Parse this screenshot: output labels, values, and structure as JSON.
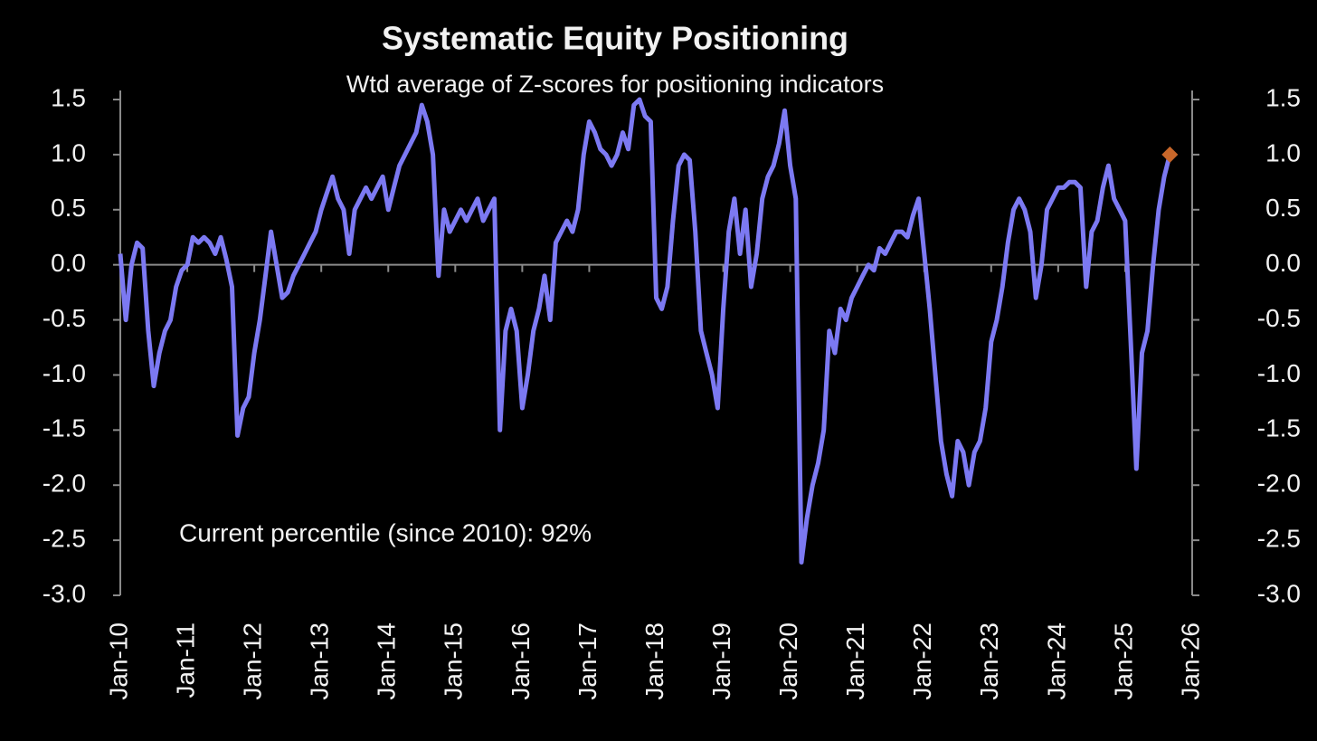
{
  "chart_data": {
    "type": "line",
    "title": "Systematic Equity Positioning",
    "subtitle": "Wtd average of Z-scores for positioning indicators",
    "annotations": [
      "Current percentile (since 2010): 92%"
    ],
    "xlim": [
      2010,
      2026
    ],
    "xticks": [
      {
        "value": 2010,
        "label": "Jan-10"
      },
      {
        "value": 2011,
        "label": "Jan-11"
      },
      {
        "value": 2012,
        "label": "Jan-12"
      },
      {
        "value": 2013,
        "label": "Jan-13"
      },
      {
        "value": 2014,
        "label": "Jan-14"
      },
      {
        "value": 2015,
        "label": "Jan-15"
      },
      {
        "value": 2016,
        "label": "Jan-16"
      },
      {
        "value": 2017,
        "label": "Jan-17"
      },
      {
        "value": 2018,
        "label": "Jan-18"
      },
      {
        "value": 2019,
        "label": "Jan-19"
      },
      {
        "value": 2020,
        "label": "Jan-20"
      },
      {
        "value": 2021,
        "label": "Jan-21"
      },
      {
        "value": 2022,
        "label": "Jan-22"
      },
      {
        "value": 2023,
        "label": "Jan-23"
      },
      {
        "value": 2024,
        "label": "Jan-24"
      },
      {
        "value": 2025,
        "label": "Jan-25"
      },
      {
        "value": 2026,
        "label": "Jan-26"
      }
    ],
    "ylim": [
      -3,
      1.5
    ],
    "yticks": [
      1.5,
      {
        "value": 1,
        "label": "1.0"
      },
      0.5,
      {
        "value": 0,
        "label": "0.0"
      },
      -0.5,
      {
        "value": -1,
        "label": "-1.0"
      },
      -1.5,
      {
        "value": -2,
        "label": "-2.0"
      },
      -2.5,
      {
        "value": -3,
        "label": "-3.0"
      }
    ],
    "y2lim": [
      -3,
      1.5
    ],
    "y2ticks": [
      1.5,
      {
        "value": 1,
        "label": "1.0"
      },
      0.5,
      {
        "value": 0,
        "label": "0.0"
      },
      -0.5,
      {
        "value": -1,
        "label": "-1.0"
      },
      -1.5,
      {
        "value": -2,
        "label": "-2.0"
      },
      -2.5,
      {
        "value": -3,
        "label": "-3.0"
      }
    ],
    "grid": false,
    "zero_line": true,
    "x": [
      2010,
      2010.083,
      2010.167,
      2010.25,
      2010.333,
      2010.417,
      2010.5,
      2010.583,
      2010.667,
      2010.75,
      2010.833,
      2010.917,
      2011,
      2011.083,
      2011.167,
      2011.25,
      2011.333,
      2011.417,
      2011.5,
      2011.583,
      2011.667,
      2011.75,
      2011.833,
      2011.917,
      2012,
      2012.083,
      2012.167,
      2012.25,
      2012.333,
      2012.417,
      2012.5,
      2012.583,
      2012.667,
      2012.75,
      2012.833,
      2012.917,
      2013,
      2013.083,
      2013.167,
      2013.25,
      2013.333,
      2013.417,
      2013.5,
      2013.583,
      2013.667,
      2013.75,
      2013.833,
      2013.917,
      2014,
      2014.083,
      2014.167,
      2014.25,
      2014.333,
      2014.417,
      2014.5,
      2014.583,
      2014.667,
      2014.75,
      2014.833,
      2014.917,
      2015,
      2015.083,
      2015.167,
      2015.25,
      2015.333,
      2015.417,
      2015.5,
      2015.583,
      2015.667,
      2015.75,
      2015.833,
      2015.917,
      2016,
      2016.083,
      2016.167,
      2016.25,
      2016.333,
      2016.417,
      2016.5,
      2016.583,
      2016.667,
      2016.75,
      2016.833,
      2016.917,
      2017,
      2017.083,
      2017.167,
      2017.25,
      2017.333,
      2017.417,
      2017.5,
      2017.583,
      2017.667,
      2017.75,
      2017.833,
      2017.917,
      2018,
      2018.083,
      2018.167,
      2018.25,
      2018.333,
      2018.417,
      2018.5,
      2018.583,
      2018.667,
      2018.75,
      2018.833,
      2018.917,
      2019,
      2019.083,
      2019.167,
      2019.25,
      2019.333,
      2019.417,
      2019.5,
      2019.583,
      2019.667,
      2019.75,
      2019.833,
      2019.917,
      2020,
      2020.083,
      2020.167,
      2020.25,
      2020.333,
      2020.417,
      2020.5,
      2020.583,
      2020.667,
      2020.75,
      2020.833,
      2020.917,
      2021,
      2021.083,
      2021.167,
      2021.25,
      2021.333,
      2021.417,
      2021.5,
      2021.583,
      2021.667,
      2021.75,
      2021.833,
      2021.917,
      2022,
      2022.083,
      2022.167,
      2022.25,
      2022.333,
      2022.417,
      2022.5,
      2022.583,
      2022.667,
      2022.75,
      2022.833,
      2022.917,
      2023,
      2023.083,
      2023.167,
      2023.25,
      2023.333,
      2023.417,
      2023.5,
      2023.583,
      2023.667,
      2023.75,
      2023.833,
      2023.917,
      2024,
      2024.083,
      2024.167,
      2024.25,
      2024.333,
      2024.417,
      2024.5,
      2024.583,
      2024.667,
      2024.75,
      2024.833,
      2024.917,
      2025,
      2025.083,
      2025.167,
      2025.25,
      2025.333,
      2025.417,
      2025.5,
      2025.583,
      2025.667
    ],
    "series": [
      {
        "color": "#7c79f2",
        "last_marker_color": "#c8672a",
        "values": [
          0.1,
          -0.5,
          0.0,
          0.2,
          0.15,
          -0.6,
          -1.1,
          -0.8,
          -0.6,
          -0.5,
          -0.2,
          -0.05,
          0.0,
          0.25,
          0.2,
          0.25,
          0.2,
          0.1,
          0.25,
          0.05,
          -0.2,
          -1.55,
          -1.3,
          -1.2,
          -0.8,
          -0.5,
          -0.1,
          0.3,
          0.0,
          -0.3,
          -0.25,
          -0.1,
          0.0,
          0.1,
          0.2,
          0.3,
          0.5,
          0.65,
          0.8,
          0.6,
          0.5,
          0.1,
          0.5,
          0.6,
          0.7,
          0.6,
          0.7,
          0.8,
          0.5,
          0.7,
          0.9,
          1.0,
          1.1,
          1.2,
          1.45,
          1.3,
          1.0,
          -0.1,
          0.5,
          0.3,
          0.4,
          0.5,
          0.4,
          0.5,
          0.6,
          0.4,
          0.5,
          0.6,
          -1.5,
          -0.6,
          -0.4,
          -0.6,
          -1.3,
          -1.0,
          -0.6,
          -0.4,
          -0.1,
          -0.5,
          0.2,
          0.3,
          0.4,
          0.3,
          0.5,
          1.0,
          1.3,
          1.2,
          1.05,
          1.0,
          0.9,
          1.0,
          1.2,
          1.05,
          1.45,
          1.5,
          1.35,
          1.3,
          -0.3,
          -0.4,
          -0.2,
          0.4,
          0.9,
          1.0,
          0.95,
          0.3,
          -0.6,
          -0.8,
          -1.0,
          -1.3,
          -0.4,
          0.3,
          0.6,
          0.1,
          0.5,
          -0.2,
          0.1,
          0.6,
          0.8,
          0.9,
          1.1,
          1.4,
          0.9,
          0.6,
          -2.7,
          -2.3,
          -2.0,
          -1.8,
          -1.5,
          -0.6,
          -0.8,
          -0.4,
          -0.5,
          -0.3,
          -0.2,
          -0.1,
          0.0,
          -0.05,
          0.15,
          0.1,
          0.2,
          0.3,
          0.3,
          0.25,
          0.45,
          0.6,
          0.1,
          -0.4,
          -1.0,
          -1.6,
          -1.9,
          -2.1,
          -1.6,
          -1.7,
          -2.0,
          -1.7,
          -1.6,
          -1.3,
          -0.7,
          -0.5,
          -0.2,
          0.2,
          0.5,
          0.6,
          0.5,
          0.3,
          -0.3,
          0.0,
          0.5,
          0.6,
          0.7,
          0.7,
          0.75,
          0.75,
          0.7,
          -0.2,
          0.3,
          0.4,
          0.7,
          0.9,
          0.6,
          0.5,
          0.4,
          -0.7,
          -1.85,
          -0.8,
          -0.6,
          0.0,
          0.5,
          0.8,
          1.0
        ]
      }
    ]
  }
}
